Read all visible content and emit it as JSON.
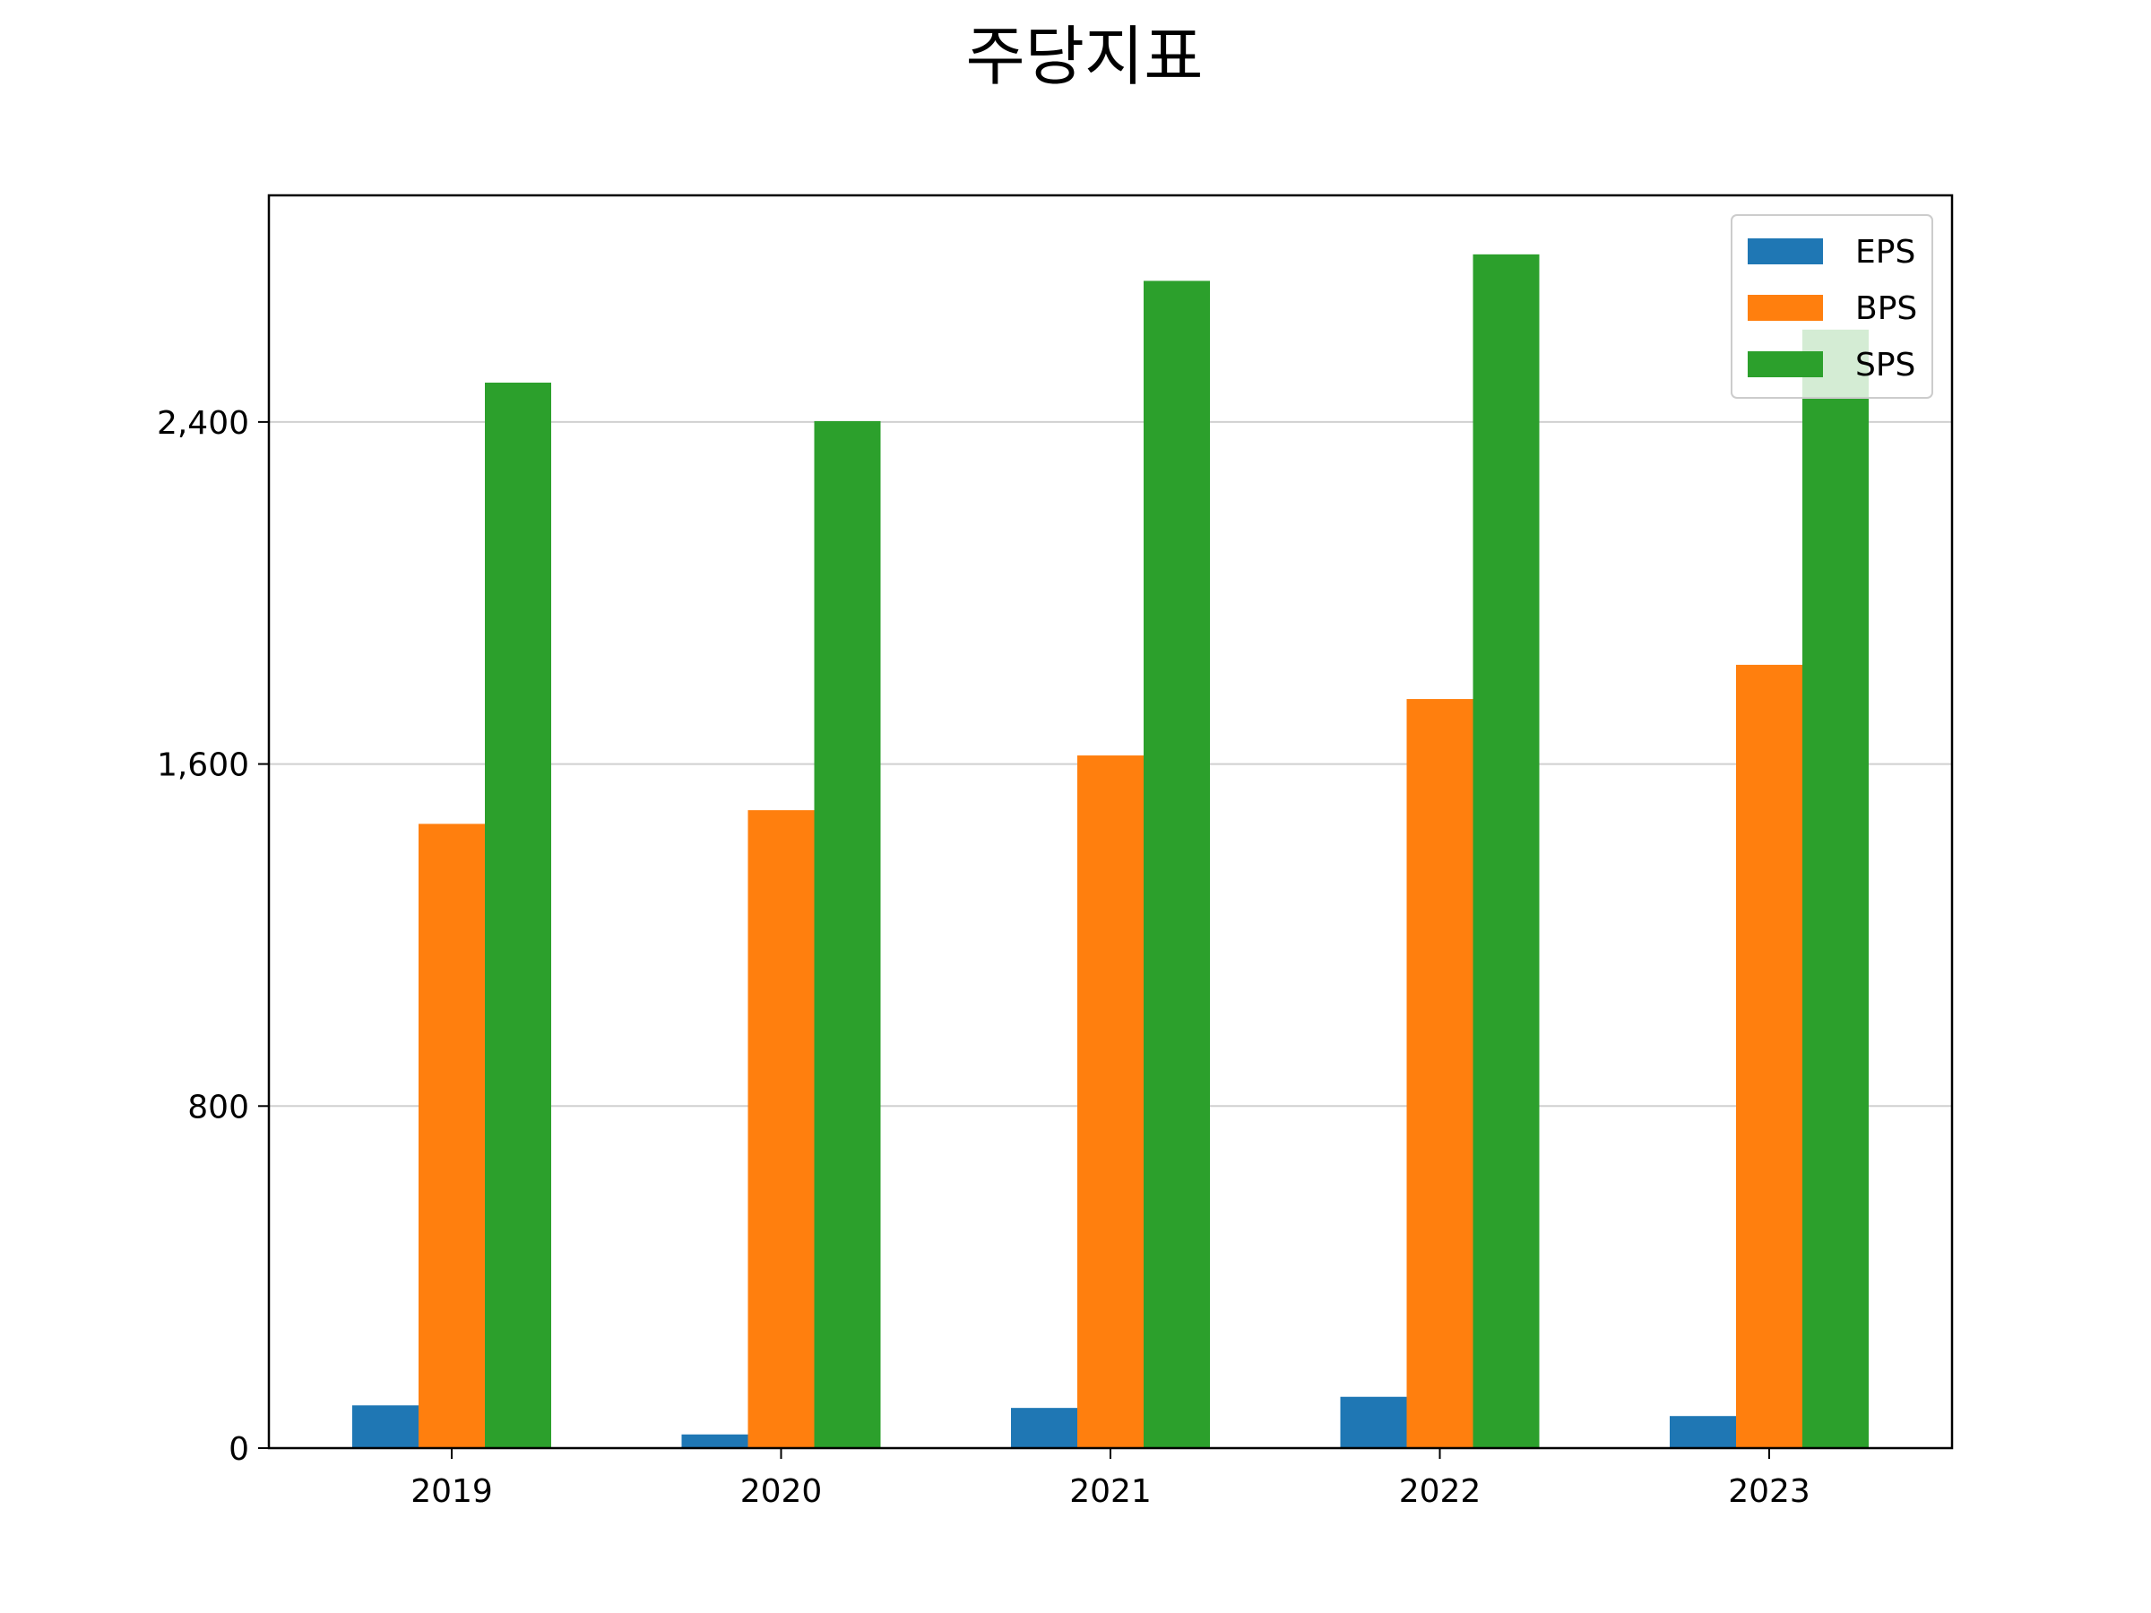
{
  "chart_data": {
    "type": "bar",
    "title": "주당지표",
    "xlabel": "",
    "ylabel": "",
    "categories": [
      "2019",
      "2020",
      "2021",
      "2022",
      "2023"
    ],
    "series": [
      {
        "name": "EPS",
        "color": "#1f77b4",
        "values": [
          100,
          32,
          94,
          120,
          75
        ]
      },
      {
        "name": "BPS",
        "color": "#ff7f0e",
        "values": [
          1460,
          1492,
          1620,
          1752,
          1832
        ]
      },
      {
        "name": "SPS",
        "color": "#2ca02c",
        "values": [
          2492,
          2402,
          2730,
          2792,
          2616
        ]
      }
    ],
    "ylim": [
      0,
      2930
    ],
    "yticks": [
      0,
      800,
      1600,
      2400
    ],
    "ytick_labels": [
      "0",
      "800",
      "1,600",
      "2,400"
    ],
    "grid": "y",
    "legend_position": "top-right"
  }
}
